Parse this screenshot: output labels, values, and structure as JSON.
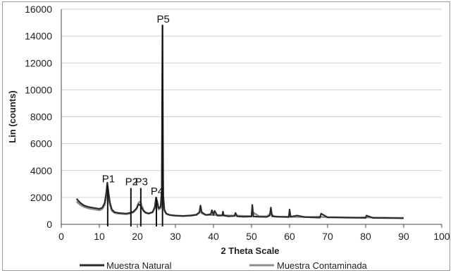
{
  "chart_data": {
    "type": "line",
    "title": "",
    "xlabel": "2 Theta Scale",
    "ylabel": "Lin (counts)",
    "xlim": [
      0,
      100
    ],
    "ylim": [
      0,
      16000
    ],
    "x_ticks": [
      "0",
      "10",
      "20",
      "30",
      "40",
      "50",
      "60",
      "70",
      "80",
      "90",
      "100"
    ],
    "y_ticks": [
      "0",
      "2000",
      "4000",
      "6000",
      "8000",
      "10000",
      "12000",
      "14000",
      "16000"
    ],
    "grid": "horizontal",
    "legend_position": "bottom",
    "colors": {
      "natural": "#2b2b2b",
      "contaminada": "#8c8c8c",
      "grid": "#cfcfcf"
    },
    "series": [
      {
        "name": "Muestra Natural",
        "x": [
          4,
          5,
          6,
          7,
          8,
          9,
          10,
          10.8,
          11.4,
          11.8,
          12.1,
          12.4,
          12.8,
          13.3,
          14,
          15,
          16,
          17,
          18,
          19,
          19.8,
          20.3,
          20.8,
          21.2,
          21.6,
          22.2,
          23,
          24,
          24.6,
          24.9,
          25.2,
          25.6,
          26.1,
          26.4,
          26.6,
          26.8,
          27.1,
          27.6,
          28.5,
          30,
          32,
          34,
          35.5,
          36.3,
          36.6,
          36.9,
          38,
          39.3,
          39.6,
          40,
          40.3,
          41,
          42.3,
          42.5,
          42.7,
          44,
          45.5,
          45.8,
          46.2,
          48,
          50,
          50.2,
          50.5,
          52,
          54,
          54.8,
          55.1,
          55.4,
          57,
          59.8,
          60,
          60.3,
          62,
          64,
          66,
          68,
          68.3,
          70,
          72,
          75,
          78,
          80,
          80.2,
          82,
          85,
          88,
          90
        ],
        "y": [
          1900,
          1600,
          1400,
          1300,
          1250,
          1200,
          1150,
          1250,
          1600,
          2300,
          3100,
          2400,
          1600,
          1100,
          900,
          850,
          820,
          800,
          850,
          950,
          1200,
          1500,
          1400,
          1200,
          1000,
          850,
          800,
          900,
          1300,
          2000,
          1700,
          1200,
          1300,
          2500,
          14800,
          2200,
          1100,
          800,
          700,
          650,
          620,
          650,
          700,
          900,
          1400,
          900,
          700,
          750,
          1050,
          700,
          1000,
          650,
          650,
          950,
          650,
          600,
          620,
          850,
          600,
          560,
          580,
          1450,
          580,
          560,
          550,
          650,
          1250,
          600,
          560,
          540,
          1100,
          560,
          650,
          540,
          520,
          500,
          800,
          520,
          520,
          500,
          490,
          480,
          650,
          480,
          470,
          460,
          450
        ]
      },
      {
        "name": "Muestra Contaminada",
        "x": [
          4,
          5,
          6,
          7,
          8,
          9,
          10,
          10.8,
          11.4,
          11.8,
          12.1,
          12.4,
          12.8,
          13.3,
          14,
          15,
          16,
          17,
          18,
          19,
          19.8,
          20.3,
          20.8,
          21.2,
          21.6,
          22.2,
          23,
          24,
          24.6,
          24.9,
          25.2,
          25.6,
          26.1,
          26.4,
          26.6,
          26.8,
          27.1,
          27.6,
          28.5,
          30,
          32,
          34,
          35.5,
          36.3,
          36.6,
          36.9,
          38,
          40,
          42,
          44,
          46,
          48,
          50,
          50.3,
          52,
          54,
          55,
          56,
          58,
          60,
          62,
          64,
          66,
          68,
          70,
          72,
          75,
          78,
          80,
          82,
          85,
          88,
          90
        ],
        "y": [
          1700,
          1450,
          1300,
          1200,
          1150,
          1100,
          1050,
          1150,
          1450,
          2000,
          2600,
          2000,
          1450,
          1000,
          850,
          800,
          780,
          760,
          800,
          900,
          1150,
          1600,
          1700,
          1350,
          1050,
          880,
          820,
          900,
          1200,
          1800,
          1500,
          1100,
          1200,
          1800,
          6200,
          1700,
          1000,
          780,
          680,
          640,
          620,
          660,
          720,
          850,
          1100,
          820,
          700,
          700,
          680,
          650,
          640,
          620,
          600,
          900,
          600,
          580,
          800,
          580,
          560,
          560,
          550,
          540,
          540,
          560,
          530,
          520,
          510,
          500,
          520,
          500,
          490,
          480,
          470
        ]
      }
    ],
    "peaks": [
      {
        "label": "P1",
        "x": 12.2,
        "y": 2900
      },
      {
        "label": "P2",
        "x": 18.3,
        "y": 2700
      },
      {
        "label": "P3",
        "x": 20.9,
        "y": 2700
      },
      {
        "label": "P4",
        "x": 25.0,
        "y": 2000
      },
      {
        "label": "P5",
        "x": 26.6,
        "y": 14800
      }
    ]
  }
}
